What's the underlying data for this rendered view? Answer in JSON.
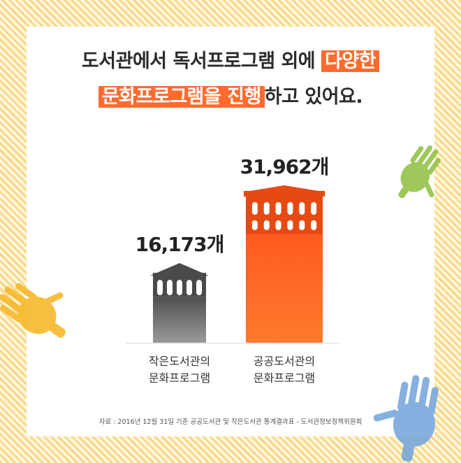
{
  "headline": {
    "line1_plain": "도서관에서 독서프로그램 외에 ",
    "line1_highlight": "다양한",
    "line2_highlight": "문화프로그램을 진행",
    "line2_plain": "하고 있어요."
  },
  "source": "자료 : 2016년 12월 31일 기준 공공도서관 및 작은도서관 통계결과표 - 도서관정보정책위원회",
  "colors": {
    "accent": "#ff6b2e",
    "small_library": "#6f6f6f",
    "public_library": "#ff5a1f",
    "frame": "#f6d889"
  },
  "decorations": [
    "green-handprint-icon",
    "yellow-handprint-icon",
    "blue-handprint-icon"
  ],
  "chart_data": {
    "type": "bar",
    "title": "",
    "xlabel": "",
    "ylabel": "",
    "unit": "개",
    "categories": [
      "작은도서관의 문화프로그램",
      "공공도서관의 문화프로그램"
    ],
    "category_lines": [
      [
        "작은도서관의",
        "문화프로그램"
      ],
      [
        "공공도서관의",
        "문화프로그램"
      ]
    ],
    "values": [
      16173,
      31962
    ],
    "value_labels": [
      "16,173개",
      "31,962개"
    ],
    "ylim": [
      0,
      35000
    ],
    "grid": false,
    "legend": "none"
  }
}
